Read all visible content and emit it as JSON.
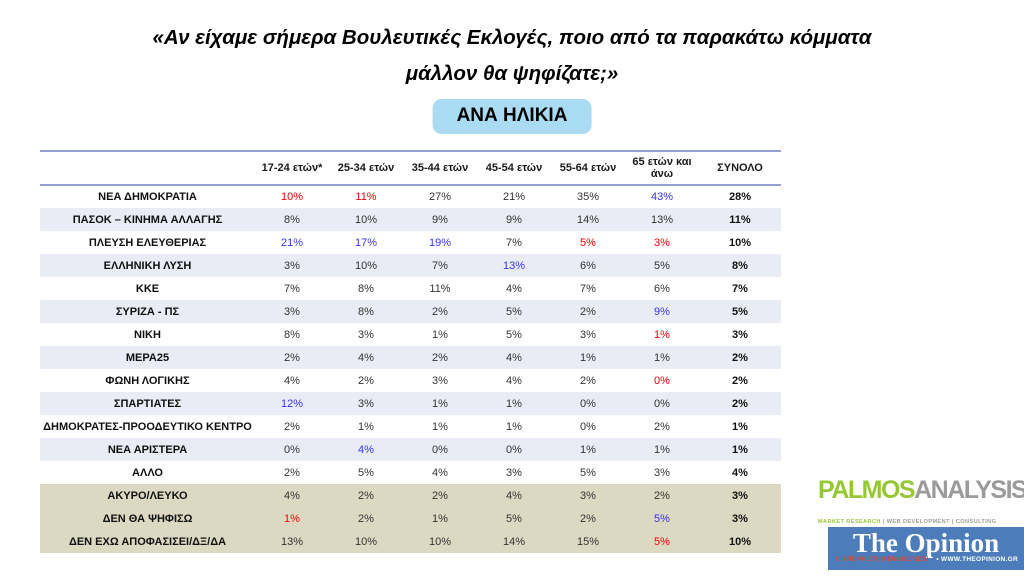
{
  "title": {
    "line1": "«Αν είχαμε σήμερα Βουλευτικές Εκλογές, ποιο από τα παρακάτω κόμματα",
    "line2": "μάλλον θα ψηφίζατε;»"
  },
  "badge_label": "ΑΝΑ ΗΛΙΚΙΑ",
  "chart_data": {
    "type": "table",
    "title": "«Αν είχαμε σήμερα Βουλευτικές Εκλογές, ποιο από τα παρακάτω κόμματα μάλλον θα ψηφίζατε;» — ΑΝΑ ΗΛΙΚΙΑ",
    "columns": [
      "17-24 ετών*",
      "25-34 ετών",
      "35-44 ετών",
      "45-54 ετών",
      "55-64 ετών",
      "65 ετών και άνω",
      "ΣΥΝΟΛΟ"
    ],
    "rows": [
      {
        "label": "ΝΕΑ ΔΗΜΟΚΡΑΤΙΑ",
        "values": [
          "10%",
          "11%",
          "27%",
          "21%",
          "35%",
          "43%",
          "28%"
        ],
        "styles": [
          "red",
          "red",
          null,
          null,
          null,
          "blue",
          null
        ],
        "section": "main"
      },
      {
        "label": "ΠΑΣΟΚ – ΚΙΝΗΜΑ ΑΛΛΑΓΗΣ",
        "values": [
          "8%",
          "10%",
          "9%",
          "9%",
          "14%",
          "13%",
          "11%"
        ],
        "styles": [
          null,
          null,
          null,
          null,
          null,
          null,
          null
        ],
        "section": "main"
      },
      {
        "label": "ΠΛΕΥΣΗ ΕΛΕΥΘΕΡΙΑΣ",
        "values": [
          "21%",
          "17%",
          "19%",
          "7%",
          "5%",
          "3%",
          "10%"
        ],
        "styles": [
          "blue",
          "blue",
          "blue",
          null,
          "red",
          "red",
          null
        ],
        "section": "main"
      },
      {
        "label": "ΕΛΛΗΝΙΚΗ ΛΥΣΗ",
        "values": [
          "3%",
          "10%",
          "7%",
          "13%",
          "6%",
          "5%",
          "8%"
        ],
        "styles": [
          null,
          null,
          null,
          "blue",
          null,
          null,
          null
        ],
        "section": "main"
      },
      {
        "label": "ΚΚΕ",
        "values": [
          "7%",
          "8%",
          "11%",
          "4%",
          "7%",
          "6%",
          "7%"
        ],
        "styles": [
          null,
          null,
          null,
          null,
          null,
          null,
          null
        ],
        "section": "main"
      },
      {
        "label": "ΣΥΡΙΖΑ - ΠΣ",
        "values": [
          "3%",
          "8%",
          "2%",
          "5%",
          "2%",
          "9%",
          "5%"
        ],
        "styles": [
          null,
          null,
          null,
          null,
          null,
          "blue",
          null
        ],
        "section": "main"
      },
      {
        "label": "ΝΙΚΗ",
        "values": [
          "8%",
          "3%",
          "1%",
          "5%",
          "3%",
          "1%",
          "3%"
        ],
        "styles": [
          null,
          null,
          null,
          null,
          null,
          "red",
          null
        ],
        "section": "main"
      },
      {
        "label": "ΜΕΡΑ25",
        "values": [
          "2%",
          "4%",
          "2%",
          "4%",
          "1%",
          "1%",
          "2%"
        ],
        "styles": [
          null,
          null,
          null,
          null,
          null,
          null,
          null
        ],
        "section": "main"
      },
      {
        "label": "ΦΩΝΗ ΛΟΓΙΚΗΣ",
        "values": [
          "4%",
          "2%",
          "3%",
          "4%",
          "2%",
          "0%",
          "2%"
        ],
        "styles": [
          null,
          null,
          null,
          null,
          null,
          "red",
          null
        ],
        "section": "main"
      },
      {
        "label": "ΣΠΑΡΤΙΑΤΕΣ",
        "values": [
          "12%",
          "3%",
          "1%",
          "1%",
          "0%",
          "0%",
          "2%"
        ],
        "styles": [
          "blue",
          null,
          null,
          null,
          null,
          null,
          null
        ],
        "section": "main"
      },
      {
        "label": "ΔΗΜΟΚΡΑΤΕΣ-ΠΡΟΟΔΕΥΤΙΚΟ ΚΕΝΤΡΟ",
        "values": [
          "2%",
          "1%",
          "1%",
          "1%",
          "0%",
          "2%",
          "1%"
        ],
        "styles": [
          null,
          null,
          null,
          null,
          null,
          null,
          null
        ],
        "section": "main"
      },
      {
        "label": "ΝΕΑ ΑΡΙΣΤΕΡΑ",
        "values": [
          "0%",
          "4%",
          "0%",
          "0%",
          "1%",
          "1%",
          "1%"
        ],
        "styles": [
          null,
          "blue",
          null,
          null,
          null,
          null,
          null
        ],
        "section": "main"
      },
      {
        "label": "ΑΛΛΟ",
        "values": [
          "2%",
          "5%",
          "4%",
          "3%",
          "5%",
          "3%",
          "4%"
        ],
        "styles": [
          null,
          null,
          null,
          null,
          null,
          null,
          null
        ],
        "section": "main"
      },
      {
        "label": "ΑΚΥΡΟ/ΛΕΥΚΟ",
        "values": [
          "4%",
          "2%",
          "2%",
          "4%",
          "3%",
          "2%",
          "3%"
        ],
        "styles": [
          null,
          null,
          null,
          null,
          null,
          null,
          null
        ],
        "section": "summary"
      },
      {
        "label": "ΔΕΝ ΘΑ ΨΗΦΙΣΩ",
        "values": [
          "1%",
          "2%",
          "1%",
          "5%",
          "2%",
          "5%",
          "3%"
        ],
        "styles": [
          "red",
          null,
          null,
          null,
          null,
          "blue",
          null
        ],
        "section": "summary"
      },
      {
        "label": "ΔΕΝ ΕΧΩ ΑΠΟΦΑΣΙΣΕΙ/ΔΞ/ΔΑ",
        "values": [
          "13%",
          "10%",
          "10%",
          "14%",
          "15%",
          "5%",
          "10%"
        ],
        "styles": [
          null,
          null,
          null,
          null,
          null,
          "red",
          null
        ],
        "section": "summary"
      }
    ],
    "value_colors": {
      "red": "#f40000",
      "blue": "#3535ee",
      "default": "#333333",
      "total_column": "bold black"
    },
    "row_colors": {
      "alternate": "#e9ebf5",
      "summary_band": "#dcd8c2",
      "header_rule": "#93a0ce"
    }
  },
  "logos": {
    "palmos": {
      "word_green": "PALMOS",
      "word_gray": "ANALYSIS",
      "tagline_part1": "MARKET RESEARCH",
      "tagline_sep1": " | ",
      "tagline_part2": "WEB DEVELOPMENT",
      "tagline_sep2": " | ",
      "tagline_part3": "CONSULTING",
      "green": "#96c832",
      "gray": "#9b9b9b"
    },
    "opinion": {
      "title": "The Opinion",
      "tagline": "Η ΑΠΟΨΗ ΣΤΗΝ ΕΝΗΜΕΡΩΣΗ",
      "url": "• WWW.THEOPINION.GR",
      "bg": "#4c7dba"
    }
  }
}
